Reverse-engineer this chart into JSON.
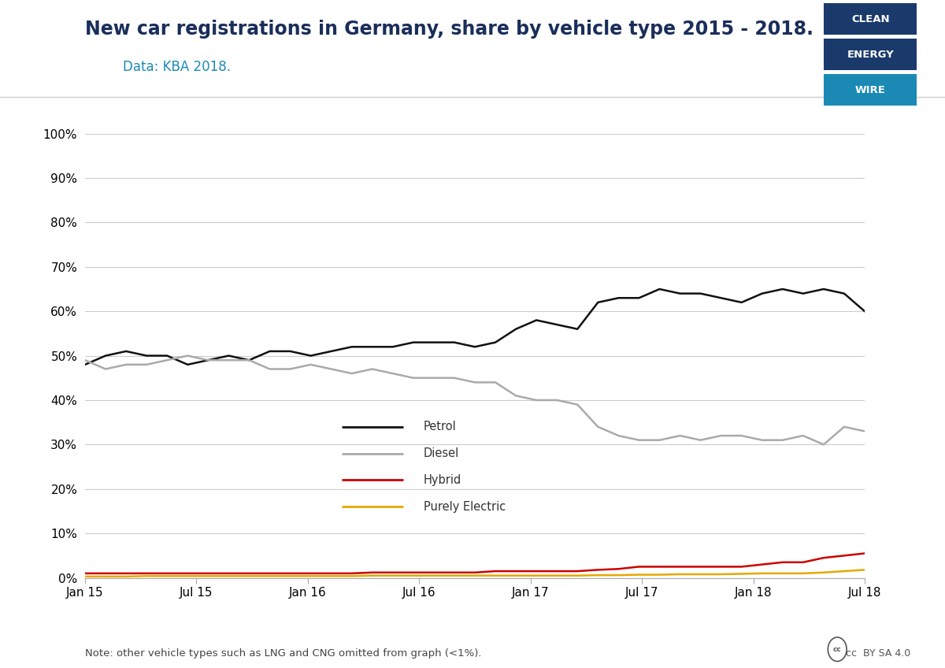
{
  "title": "New car registrations in Germany, share by vehicle type 2015 - 2018.",
  "subtitle": "Data: KBA 2018.",
  "note": "Note: other vehicle types such as LNG and CNG omitted from graph (<1%).",
  "title_color": "#1a2e5a",
  "subtitle_color": "#1a8ab5",
  "x_labels": [
    "Jan 15",
    "Jul 15",
    "Jan 16",
    "Jul 16",
    "Jan 17",
    "Jul 17",
    "Jan 18",
    "Jul 18"
  ],
  "petrol": [
    48,
    50,
    51,
    50,
    50,
    48,
    49,
    50,
    49,
    51,
    51,
    50,
    51,
    52,
    52,
    52,
    53,
    53,
    53,
    52,
    53,
    56,
    58,
    57,
    56,
    62,
    63,
    63,
    65,
    64,
    64,
    63,
    62,
    64,
    65,
    64,
    65,
    64,
    60
  ],
  "diesel": [
    49,
    47,
    48,
    48,
    49,
    50,
    49,
    49,
    49,
    47,
    47,
    48,
    47,
    46,
    47,
    46,
    45,
    45,
    45,
    44,
    44,
    41,
    40,
    40,
    39,
    34,
    32,
    31,
    31,
    32,
    31,
    32,
    32,
    31,
    31,
    32,
    30,
    34,
    33
  ],
  "hybrid": [
    1.0,
    1.0,
    1.0,
    1.0,
    1.0,
    1.0,
    1.0,
    1.0,
    1.0,
    1.0,
    1.0,
    1.0,
    1.0,
    1.0,
    1.2,
    1.2,
    1.2,
    1.2,
    1.2,
    1.2,
    1.5,
    1.5,
    1.5,
    1.5,
    1.5,
    1.8,
    2.0,
    2.5,
    2.5,
    2.5,
    2.5,
    2.5,
    2.5,
    3.0,
    3.5,
    3.5,
    4.5,
    5.0,
    5.5
  ],
  "electric": [
    0.3,
    0.3,
    0.3,
    0.4,
    0.4,
    0.4,
    0.4,
    0.4,
    0.4,
    0.4,
    0.4,
    0.4,
    0.4,
    0.4,
    0.5,
    0.5,
    0.5,
    0.5,
    0.5,
    0.5,
    0.5,
    0.5,
    0.5,
    0.5,
    0.5,
    0.6,
    0.6,
    0.7,
    0.7,
    0.8,
    0.8,
    0.8,
    0.9,
    1.0,
    1.0,
    1.0,
    1.2,
    1.5,
    1.8
  ],
  "petrol_color": "#111111",
  "diesel_color": "#aaaaaa",
  "hybrid_color": "#cc0000",
  "electric_color": "#e6a800",
  "line_width": 1.8,
  "ylim": [
    0,
    100
  ],
  "yticks": [
    0,
    10,
    20,
    30,
    40,
    50,
    60,
    70,
    80,
    90,
    100
  ],
  "grid_color": "#cccccc",
  "legend_items": [
    "Petrol",
    "Diesel",
    "Hybrid",
    "Purely Electric"
  ],
  "legend_colors_keys": [
    "petrol_color",
    "diesel_color",
    "hybrid_color",
    "electric_color"
  ],
  "n_points": 39,
  "logo_words": [
    "CLEAN",
    "ENERGY",
    "WIRE"
  ],
  "logo_box_colors": [
    "#1a3a6b",
    "#1a3a6b",
    "#1a8ab5"
  ],
  "cc_text": "cc  BY SA 4.0",
  "separator_color": "#cccccc",
  "note_color": "#444444",
  "spine_color": "#aaaaaa",
  "tick_color": "#aaaaaa"
}
